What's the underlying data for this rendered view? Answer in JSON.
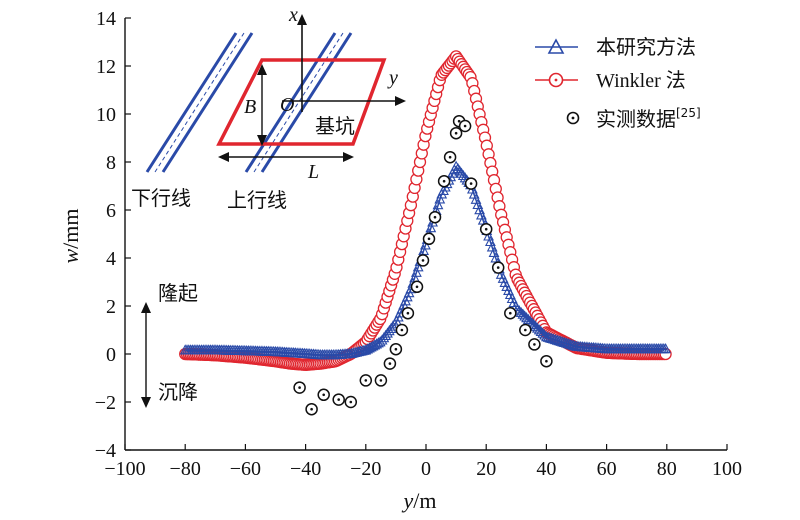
{
  "chart_data": {
    "type": "line",
    "xlabel": {
      "var": "y",
      "unit": "/m"
    },
    "ylabel": {
      "var": "w",
      "unit": "/mm"
    },
    "xlim": [
      -100,
      100
    ],
    "ylim": [
      -4,
      14
    ],
    "xticks": [
      "−100",
      "−80",
      "−60",
      "−40",
      "−20",
      "0",
      "20",
      "40",
      "60",
      "80",
      "100"
    ],
    "yticks": [
      "−4",
      "−2",
      "0",
      "2",
      "4",
      "6",
      "8",
      "10",
      "12",
      "14"
    ],
    "legend_position": "top-right",
    "colors": {
      "proposed": "#2a4aa8",
      "winkler": "#e0262f",
      "measured": "#111111",
      "inset_rect": "#e0262f",
      "inset_lines": "#2a4aa8"
    },
    "series": [
      {
        "name": "本研究方法",
        "marker": "triangle",
        "x": [
          -80,
          -70,
          -60,
          -50,
          -40,
          -35,
          -30,
          -25,
          -20,
          -15,
          -10,
          -5,
          0,
          5,
          10,
          15,
          20,
          25,
          30,
          40,
          50,
          60,
          70,
          80
        ],
        "y": [
          0.15,
          0.15,
          0.12,
          0.08,
          0.0,
          -0.05,
          -0.05,
          0.0,
          0.15,
          0.5,
          1.3,
          2.7,
          4.6,
          6.6,
          7.8,
          7.0,
          5.2,
          3.3,
          1.9,
          0.7,
          0.3,
          0.2,
          0.2,
          0.2
        ]
      },
      {
        "name": "Winkler 法",
        "marker": "circle-dot",
        "x": [
          -80,
          -70,
          -60,
          -50,
          -45,
          -40,
          -35,
          -30,
          -25,
          -20,
          -15,
          -10,
          -5,
          0,
          5,
          10,
          15,
          20,
          25,
          30,
          40,
          50,
          60,
          70,
          80
        ],
        "y": [
          0.0,
          -0.05,
          -0.15,
          -0.3,
          -0.4,
          -0.45,
          -0.4,
          -0.3,
          0.0,
          0.5,
          1.5,
          3.5,
          6.2,
          9.2,
          11.6,
          12.4,
          11.5,
          8.8,
          5.8,
          3.2,
          0.9,
          0.25,
          0.05,
          0.0,
          0.0
        ]
      },
      {
        "name": "实测数据",
        "name_superscript": "[25]",
        "marker": "circle-dot-open",
        "x": [
          -42,
          -38,
          -34,
          -29,
          -25,
          -20,
          -15,
          -12,
          -10,
          -8,
          -6,
          -3,
          -1,
          1,
          3,
          6,
          8,
          10,
          11,
          13,
          15,
          20,
          24,
          28,
          33,
          36,
          40
        ],
        "y": [
          -1.4,
          -2.3,
          -1.7,
          -1.9,
          -2.0,
          -1.1,
          -1.1,
          -0.4,
          0.2,
          1.0,
          1.7,
          2.8,
          3.9,
          4.8,
          5.7,
          7.2,
          8.2,
          9.2,
          9.7,
          9.5,
          7.1,
          5.2,
          3.6,
          1.7,
          1.0,
          0.4,
          -0.3
        ]
      }
    ],
    "inset": {
      "axis_x": "x",
      "axis_y": "y",
      "origin": "O",
      "width_label": "B",
      "length_label": "L",
      "pit_label": "基坑",
      "down_line": "下行线",
      "up_line": "上行线"
    },
    "annotations": {
      "heave": "隆起",
      "settle": "沉降"
    }
  }
}
